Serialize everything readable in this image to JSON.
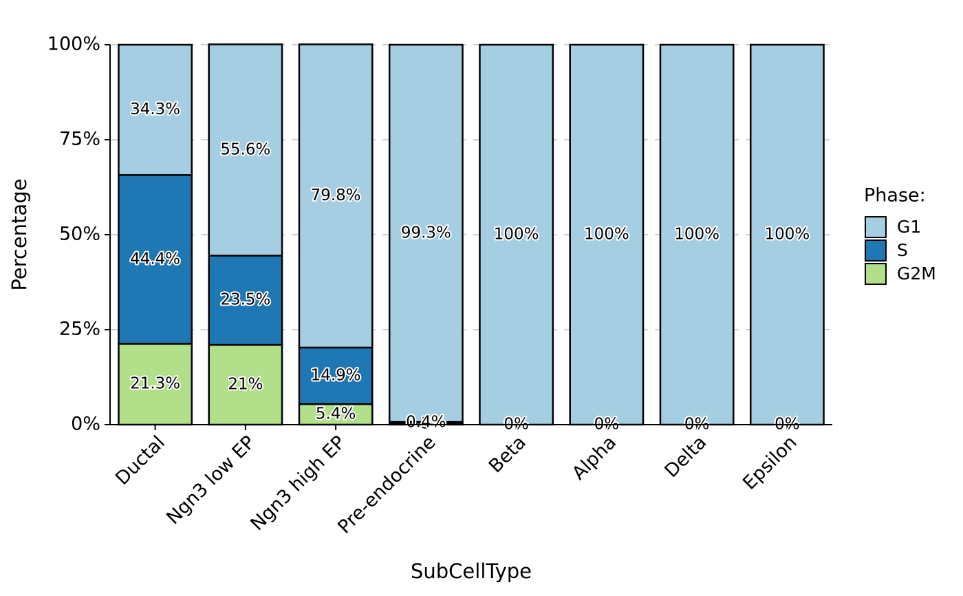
{
  "chart_data": {
    "type": "stacked_bar",
    "x_label": "SubCellType",
    "y_label": "Percentage",
    "legend_title": "Phase:",
    "categories": [
      "Ductal",
      "Ngn3 low EP",
      "Ngn3 high EP",
      "Pre-endocrine",
      "Beta",
      "Alpha",
      "Delta",
      "Epsilon"
    ],
    "series": [
      {
        "name": "G1",
        "color": "#a6cee3",
        "values": [
          34.3,
          55.6,
          79.8,
          99.3,
          100,
          100,
          100,
          100
        ],
        "value_labels": [
          "34.3%",
          "55.6%",
          "79.8%",
          "99.3%",
          "100%",
          "100%",
          "100%",
          "100%"
        ]
      },
      {
        "name": "S",
        "color": "#1f78b4",
        "values": [
          44.4,
          23.5,
          14.9,
          0.4,
          0,
          0,
          0,
          0
        ],
        "value_labels": [
          "44.4%",
          "23.5%",
          "14.9%",
          "0.4%",
          "0%",
          "0%",
          "0%",
          "0%"
        ]
      },
      {
        "name": "G2M",
        "color": "#b2df8a",
        "values": [
          21.3,
          21,
          5.4,
          0.3,
          0,
          0,
          0,
          0
        ],
        "value_labels": [
          "21.3%",
          "21%",
          "5.4%",
          "0.3%",
          "0%",
          "0%",
          "0%",
          "0%"
        ]
      }
    ],
    "ylim": [
      0,
      100
    ],
    "yticks": [
      {
        "value": 0,
        "label": "0%"
      },
      {
        "value": 25,
        "label": "25%"
      },
      {
        "value": 50,
        "label": "50%"
      },
      {
        "value": 75,
        "label": "75%"
      },
      {
        "value": 100,
        "label": "100%"
      }
    ],
    "grid": true,
    "legend_position": "right"
  }
}
